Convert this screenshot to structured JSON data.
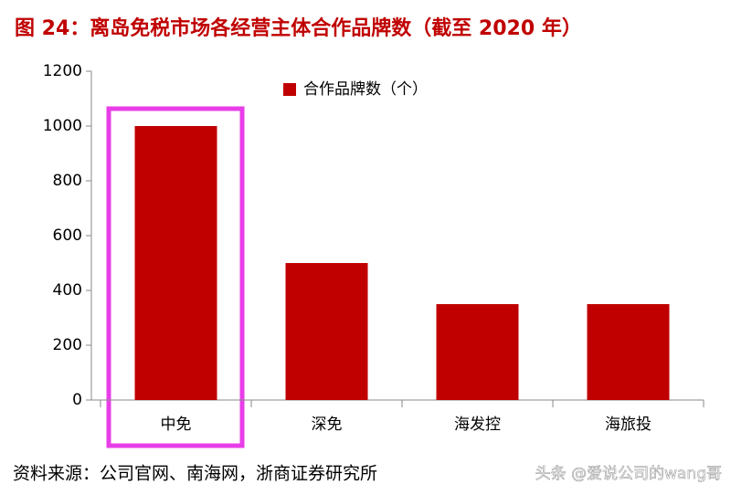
{
  "chart_data": {
    "type": "bar",
    "title": "图 24：离岛免税市场各经营主体合作品牌数（截至 2020 年）",
    "categories": [
      "中免",
      "深免",
      "海发控",
      "海旅投"
    ],
    "series": [
      {
        "name": "合作品牌数（个）",
        "color": "#c00000",
        "values": [
          1000,
          500,
          350,
          350
        ]
      }
    ],
    "ylim": [
      0,
      1200
    ],
    "yticks": [
      0,
      200,
      400,
      600,
      800,
      1000,
      1200
    ],
    "grid": false,
    "legend": "top",
    "source": "资料来源：公司官网、南海网，浙商证券研究所",
    "watermark": "头条 @爱说公司的wang哥"
  }
}
